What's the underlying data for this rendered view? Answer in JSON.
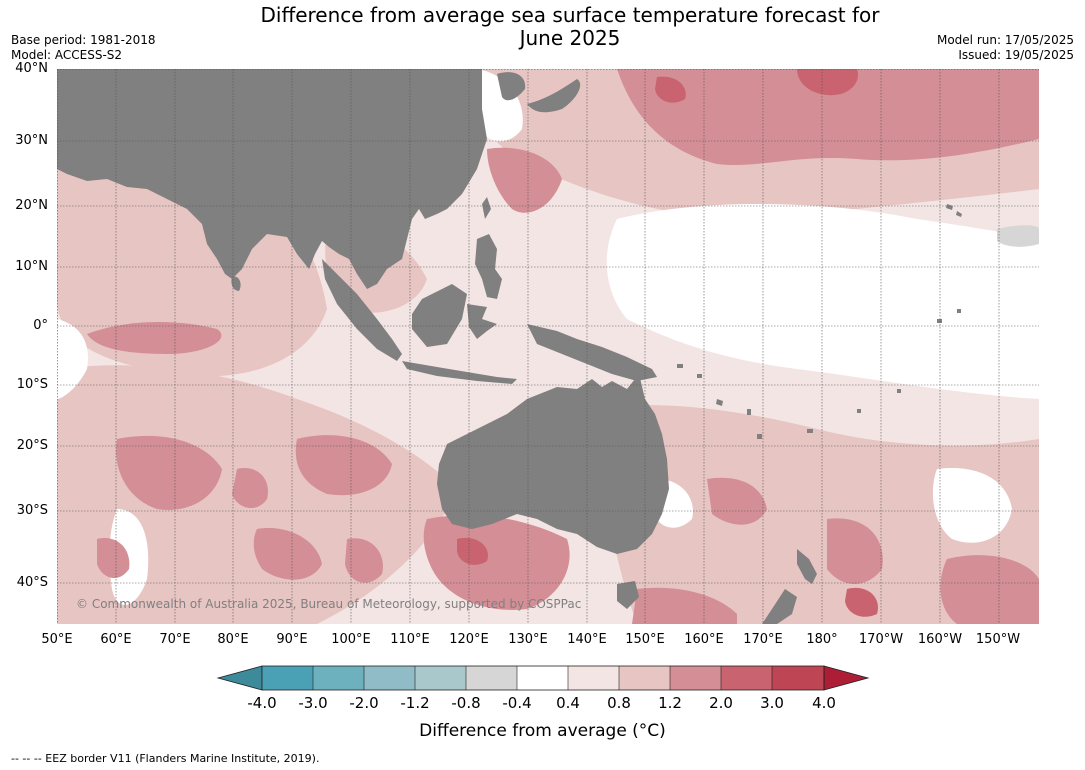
{
  "title": "Difference from average sea surface temperature forecast for",
  "title_line2": "June 2025",
  "base_period": "Base period: 1981-2018",
  "model": "Model: ACCESS-S2",
  "model_run": "Model run: 17/05/2025",
  "issued": "Issued: 19/05/2025",
  "lat_labels": [
    "40°N",
    "30°N",
    "20°N",
    "10°N",
    "0°",
    "10°S",
    "20°S",
    "30°S",
    "40°S"
  ],
  "lon_labels": [
    "50°E",
    "60°E",
    "70°E",
    "80°E",
    "90°E",
    "100°E",
    "110°E",
    "120°E",
    "130°E",
    "140°E",
    "150°E",
    "160°E",
    "170°E",
    "180°",
    "170°W",
    "160°W",
    "150°W"
  ],
  "copyright": "© Commonwealth of Australia 2025, Bureau of Meteorology, supported by COSPPac",
  "colorbar": {
    "ticks": [
      "-4.0",
      "-3.0",
      "-2.0",
      "-1.2",
      "-0.8",
      "-0.4",
      "0.4",
      "0.8",
      "1.2",
      "2.0",
      "3.0",
      "4.0"
    ],
    "colors": [
      "#3d8a9a",
      "#4aa0b4",
      "#6db0be",
      "#8fbcc6",
      "#a8c8cc",
      "#d6d6d6",
      "#ffffff",
      "#f3e5e4",
      "#e7c5c3",
      "#d48e96",
      "#c8636f",
      "#bd4554",
      "#ad1e36"
    ],
    "label": "Difference from average (°C)"
  },
  "footer": "--  --  -- EEZ border V11 (Flanders Marine Institute, 2019).",
  "colors": {
    "land": "#808080",
    "ocean_base": "#f3e5e4",
    "ocean_warm_light": "#e7c5c3",
    "ocean_warm_med": "#d48e96",
    "ocean_warm_strong": "#c8636f",
    "ocean_neutral": "#ffffff",
    "ocean_cool": "#d6d6d6"
  }
}
